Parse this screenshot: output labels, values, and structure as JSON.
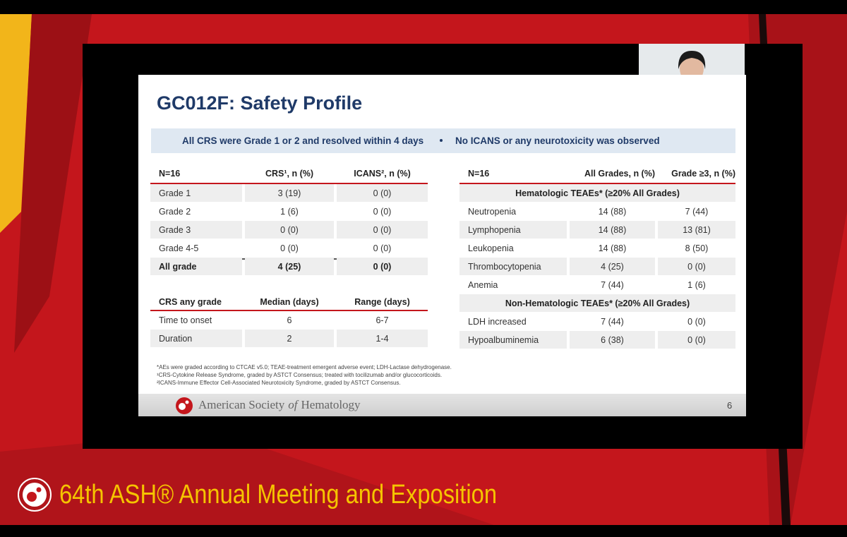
{
  "slide": {
    "title": "GC012F: Safety Profile",
    "banner": [
      "All CRS were Grade 1 or 2 and resolved within 4 days",
      "No ICANS or any neurotoxicity was observed"
    ],
    "crs_table": {
      "header": [
        "N=16",
        "CRS¹, n (%)",
        "ICANS², n (%)"
      ],
      "rows": [
        [
          "Grade 1",
          "3 (19)",
          "0 (0)"
        ],
        [
          "Grade 2",
          "1 (6)",
          "0 (0)"
        ],
        [
          "Grade 3",
          "0 (0)",
          "0 (0)"
        ],
        [
          "Grade 4-5",
          "0 (0)",
          "0 (0)"
        ],
        [
          "All grade",
          "4 (25)",
          "0 (0)"
        ]
      ]
    },
    "duration_table": {
      "header": [
        "CRS any grade",
        "Median (days)",
        "Range (days)"
      ],
      "rows": [
        [
          "Time to onset",
          "6",
          "6-7"
        ],
        [
          "Duration",
          "2",
          "1-4"
        ]
      ]
    },
    "teae_table": {
      "header": [
        "N=16",
        "All Grades, n (%)",
        "Grade ≥3, n (%)"
      ],
      "sections": [
        {
          "title": "Hematologic TEAEs* (≥20% All Grades)",
          "rows": [
            [
              "Neutropenia",
              "14 (88)",
              "7 (44)"
            ],
            [
              "Lymphopenia",
              "14 (88)",
              "13 (81)"
            ],
            [
              "Leukopenia",
              "14 (88)",
              "8 (50)"
            ],
            [
              "Thrombocytopenia",
              "4 (25)",
              "0 (0)"
            ],
            [
              "Anemia",
              "7 (44)",
              "1 (6)"
            ]
          ]
        },
        {
          "title": "Non-Hematologic TEAEs* (≥20% All Grades)",
          "rows": [
            [
              "LDH increased",
              "7 (44)",
              "0 (0)"
            ],
            [
              "Hypoalbuminemia",
              "6 (38)",
              "0 (0)"
            ]
          ]
        }
      ]
    },
    "footnotes": [
      "*AEs were graded according to CTCAE v5.0; TEAE-treatment emergent adverse event; LDH-Lactase dehydrogenase.",
      "¹CRS-Cytokine Release Syndrome, graded by ASTCT Consensus; treated with tocilizumab and/or glucocorticoids.",
      "²ICANS-Immune Effector Cell-Associated Neurotoxicity Syndrome, graded by ASTCT Consensus."
    ],
    "footer": {
      "society": [
        "American Society",
        "of",
        "Hematology"
      ],
      "page": "6"
    }
  },
  "event": {
    "title": "64th ASH® Annual Meeting and Exposition"
  }
}
